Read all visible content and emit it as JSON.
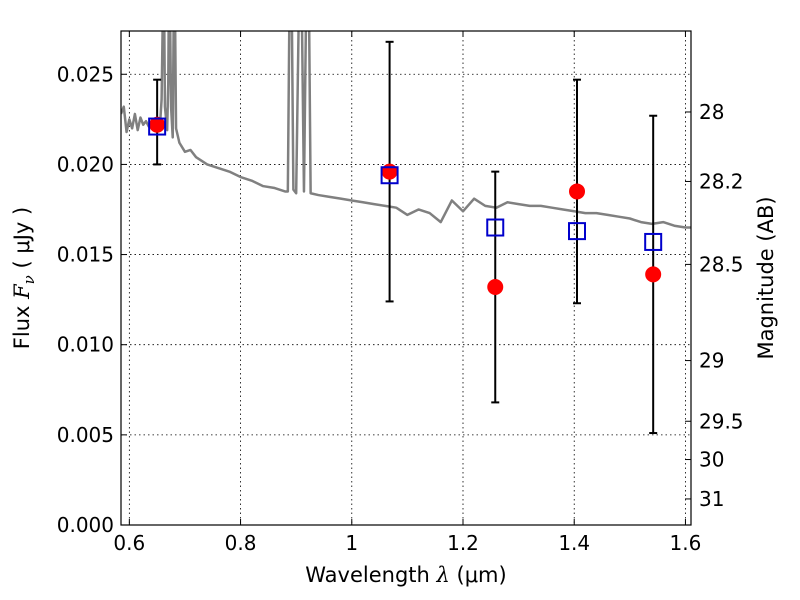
{
  "chart_data": {
    "type": "scatter",
    "title": "",
    "xlabel": {
      "prefix": "Wavelength  ",
      "symbol": "λ",
      "unit": " (μm)"
    },
    "ylabel": {
      "prefix": "Flux  ",
      "symbol": "F",
      "subscript": "ν",
      "unit": "  ( μJy )"
    },
    "y2label": "Magnitude (AB)",
    "xlim": [
      0.585,
      1.61
    ],
    "ylim": [
      0.0,
      0.0274
    ],
    "grid": true,
    "grid_style": "dotted",
    "xticks": [
      {
        "value": 0.6,
        "label": "0.6"
      },
      {
        "value": 0.8,
        "label": "0.8"
      },
      {
        "value": 1.0,
        "label": "1"
      },
      {
        "value": 1.2,
        "label": "1.2"
      },
      {
        "value": 1.4,
        "label": "1.4"
      },
      {
        "value": 1.6,
        "label": "1.6"
      }
    ],
    "yticks": [
      {
        "value": 0.0,
        "label": "0.000"
      },
      {
        "value": 0.005,
        "label": "0.005"
      },
      {
        "value": 0.01,
        "label": "0.010"
      },
      {
        "value": 0.015,
        "label": "0.015"
      },
      {
        "value": 0.02,
        "label": "0.020"
      },
      {
        "value": 0.025,
        "label": "0.025"
      }
    ],
    "y2ticks": [
      {
        "mag": 28,
        "label": "28"
      },
      {
        "mag": 28.2,
        "label": "28.2"
      },
      {
        "mag": 28.5,
        "label": "28.5"
      },
      {
        "mag": 29,
        "label": "29"
      },
      {
        "mag": 29.5,
        "label": "29.5"
      },
      {
        "mag": 30,
        "label": "30"
      },
      {
        "mag": 31,
        "label": "31"
      }
    ],
    "colors": {
      "observed": "#ff0000",
      "model": "#0000cc",
      "spectrum": "#808080",
      "errorbar": "#000000"
    },
    "series": [
      {
        "kind": "observed",
        "marker": "circle",
        "points": [
          {
            "x": 0.65,
            "y": 0.0222,
            "yerr_low": 0.02,
            "yerr_high": 0.0247
          },
          {
            "x": 1.068,
            "y": 0.0196,
            "yerr_low": 0.0124,
            "yerr_high": 0.0268
          },
          {
            "x": 1.258,
            "y": 0.0132,
            "yerr_low": 0.0068,
            "yerr_high": 0.0196
          },
          {
            "x": 1.405,
            "y": 0.0185,
            "yerr_low": 0.0123,
            "yerr_high": 0.0247
          },
          {
            "x": 1.542,
            "y": 0.0139,
            "yerr_low": 0.0051,
            "yerr_high": 0.0227
          }
        ]
      },
      {
        "kind": "model",
        "marker": "open-square",
        "points": [
          {
            "x": 0.65,
            "y": 0.0221
          },
          {
            "x": 1.068,
            "y": 0.0194
          },
          {
            "x": 1.258,
            "y": 0.0165
          },
          {
            "x": 1.405,
            "y": 0.0163
          },
          {
            "x": 1.542,
            "y": 0.0157
          }
        ]
      },
      {
        "kind": "spectrum",
        "marker": "line",
        "points": [
          [
            0.585,
            0.0228
          ],
          [
            0.59,
            0.0232
          ],
          [
            0.595,
            0.0218
          ],
          [
            0.6,
            0.0225
          ],
          [
            0.605,
            0.022
          ],
          [
            0.61,
            0.0228
          ],
          [
            0.615,
            0.0219
          ],
          [
            0.62,
            0.0226
          ],
          [
            0.625,
            0.0222
          ],
          [
            0.63,
            0.0224
          ],
          [
            0.635,
            0.0221
          ],
          [
            0.64,
            0.0223
          ],
          [
            0.645,
            0.022
          ],
          [
            0.65,
            0.0222
          ],
          [
            0.655,
            0.0221
          ],
          [
            0.658,
            0.0236
          ],
          [
            0.6605,
            0.029
          ],
          [
            0.6625,
            0.029
          ],
          [
            0.664,
            0.0232
          ],
          [
            0.668,
            0.0219
          ],
          [
            0.67,
            0.0245
          ],
          [
            0.671,
            0.029
          ],
          [
            0.673,
            0.029
          ],
          [
            0.675,
            0.0232
          ],
          [
            0.678,
            0.0215
          ],
          [
            0.68,
            0.029
          ],
          [
            0.682,
            0.029
          ],
          [
            0.684,
            0.022
          ],
          [
            0.69,
            0.0212
          ],
          [
            0.7,
            0.0207
          ],
          [
            0.71,
            0.0208
          ],
          [
            0.72,
            0.0204
          ],
          [
            0.74,
            0.02
          ],
          [
            0.76,
            0.0198
          ],
          [
            0.78,
            0.0196
          ],
          [
            0.8,
            0.0193
          ],
          [
            0.82,
            0.0191
          ],
          [
            0.84,
            0.0188
          ],
          [
            0.86,
            0.0187
          ],
          [
            0.88,
            0.0185
          ],
          [
            0.885,
            0.0185
          ],
          [
            0.888,
            0.029
          ],
          [
            0.892,
            0.029
          ],
          [
            0.895,
            0.0186
          ],
          [
            0.9,
            0.0184
          ],
          [
            0.905,
            0.029
          ],
          [
            0.91,
            0.029
          ],
          [
            0.914,
            0.0185
          ],
          [
            0.918,
            0.029
          ],
          [
            0.923,
            0.029
          ],
          [
            0.926,
            0.0184
          ],
          [
            0.94,
            0.0183
          ],
          [
            0.96,
            0.0182
          ],
          [
            0.98,
            0.0181
          ],
          [
            1.0,
            0.018
          ],
          [
            1.02,
            0.0179
          ],
          [
            1.04,
            0.0178
          ],
          [
            1.06,
            0.0177
          ],
          [
            1.08,
            0.0176
          ],
          [
            1.1,
            0.0172
          ],
          [
            1.12,
            0.0175
          ],
          [
            1.14,
            0.0173
          ],
          [
            1.16,
            0.0168
          ],
          [
            1.18,
            0.018
          ],
          [
            1.2,
            0.0174
          ],
          [
            1.22,
            0.0181
          ],
          [
            1.24,
            0.0177
          ],
          [
            1.26,
            0.0176
          ],
          [
            1.28,
            0.0179
          ],
          [
            1.3,
            0.0178
          ],
          [
            1.32,
            0.0177
          ],
          [
            1.34,
            0.0177
          ],
          [
            1.36,
            0.0176
          ],
          [
            1.38,
            0.0175
          ],
          [
            1.4,
            0.0174
          ],
          [
            1.42,
            0.0173
          ],
          [
            1.44,
            0.0173
          ],
          [
            1.46,
            0.0172
          ],
          [
            1.48,
            0.0171
          ],
          [
            1.5,
            0.017
          ],
          [
            1.52,
            0.0168
          ],
          [
            1.54,
            0.0167
          ],
          [
            1.56,
            0.0168
          ],
          [
            1.58,
            0.0166
          ],
          [
            1.6,
            0.0165
          ],
          [
            1.61,
            0.0165
          ]
        ]
      }
    ]
  }
}
